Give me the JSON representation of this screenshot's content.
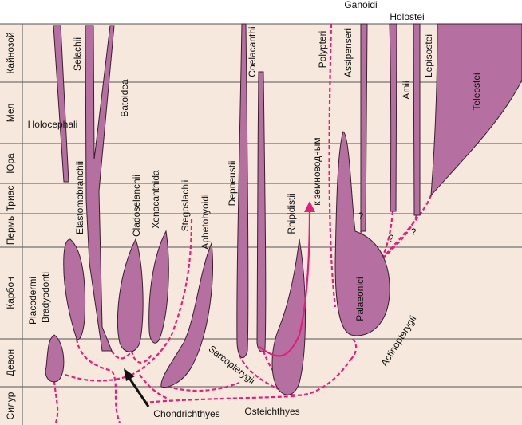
{
  "periods": [
    "Кайнозой",
    "Мел",
    "Юра",
    "Триас",
    "Пермь",
    "Карбон",
    "Девон",
    "Силур"
  ],
  "taxa": {
    "ganoidi": "Ganoidi",
    "holostei": "Holostei",
    "selachii": "Selachii",
    "batoidea": "Batoidea",
    "holocephali": "Holocephali",
    "elastomobranchii": "Elastomobranchii",
    "cladoselanchii": "Cladoselanchii",
    "xenacanthida": "Xenacanthida",
    "stegoslachii": "Stegoslachii",
    "aphetohyoidi": "Aphetohyoidi",
    "placodermi": "Placodermi",
    "bradyodonti": "Bradyodonti",
    "depneustii": "Depneustii",
    "coelacanthi": "Coelacanthi",
    "rhipidistii": "Rhipidistii",
    "to_amphibians": "к земноводным",
    "polypteri": "Polypteri",
    "assipenseri": "Assipenseri",
    "amii": "Amii",
    "lepisostei": "Lepisostei",
    "teleostei": "Teleostei",
    "palaeonici": "Palaeonici"
  },
  "groups": {
    "chondrichthyes": "Chondrichthyes",
    "osteichthyes": "Osteichthyes",
    "sarcopterygii": "Sarcopterygii",
    "actinopterygii": "Actinopterygii"
  },
  "uncertain": [
    "?",
    "?",
    "?"
  ]
}
